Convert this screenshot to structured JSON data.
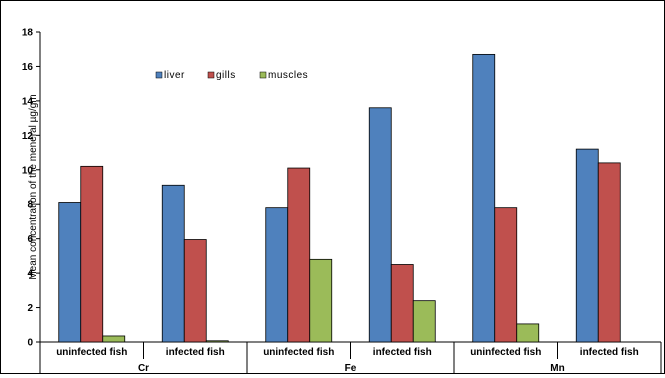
{
  "chart_data": {
    "type": "bar",
    "groups": [
      {
        "label": "Cr",
        "categories": [
          "uninfected fish",
          "infected fish"
        ]
      },
      {
        "label": "Fe",
        "categories": [
          "uninfected fish",
          "infected fish"
        ]
      },
      {
        "label": "Mn",
        "categories": [
          "uninfected fish",
          "infected fish"
        ]
      }
    ],
    "series": [
      {
        "name": "liver",
        "color": "#4F81BD",
        "values": [
          8.1,
          9.1,
          7.8,
          13.6,
          16.7,
          11.2
        ]
      },
      {
        "name": "gills",
        "color": "#C0504D",
        "values": [
          10.2,
          5.95,
          10.1,
          4.5,
          7.8,
          10.4
        ]
      },
      {
        "name": "muscles",
        "color": "#9BBB59",
        "values": [
          0.35,
          0.07,
          4.8,
          2.4,
          1.05,
          0.0
        ]
      }
    ],
    "ylabel": "Mean concentration  of  the meneral    µg/gm",
    "ylim": [
      0,
      18
    ],
    "yticks": [
      "0",
      "2",
      "4",
      "6",
      "8",
      "10",
      "12",
      "14",
      "16",
      "18"
    ],
    "grid": false,
    "legend": "top-left"
  }
}
